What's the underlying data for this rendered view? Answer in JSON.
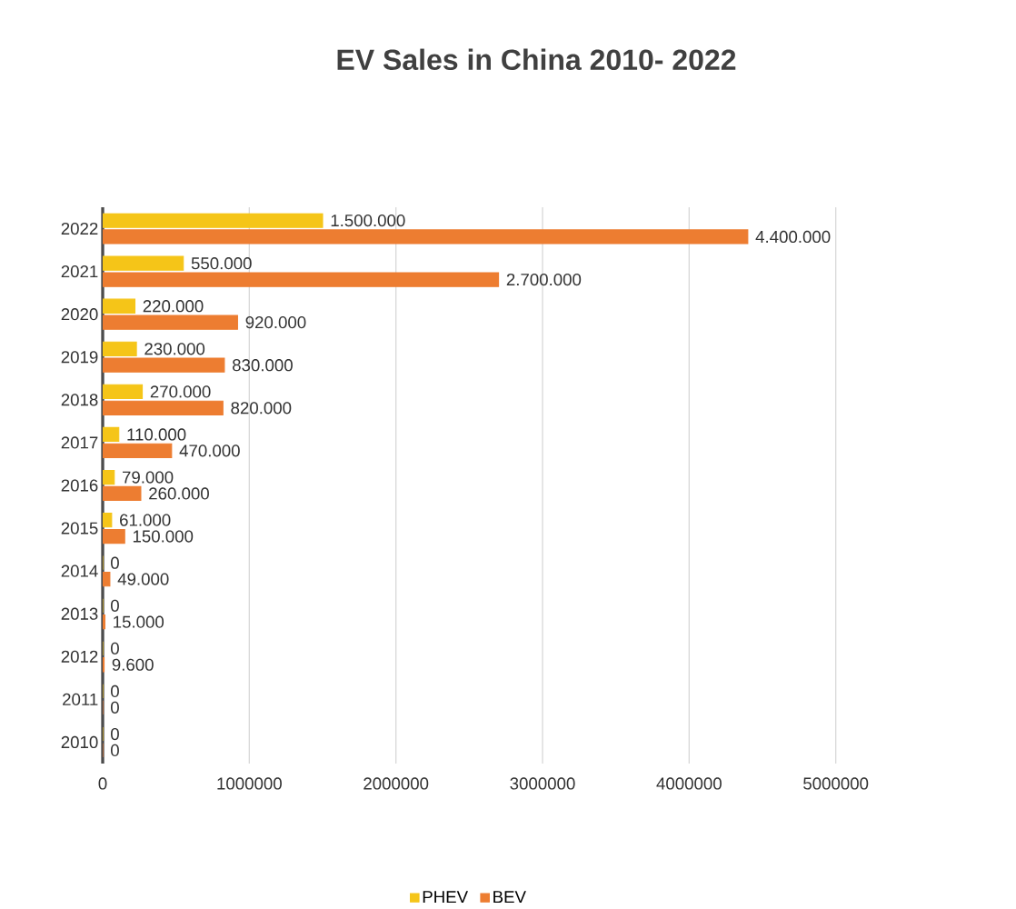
{
  "chart_data": {
    "type": "bar",
    "orientation": "horizontal",
    "title": "EV Sales in China 2010- 2022",
    "categories": [
      "2022",
      "2021",
      "2020",
      "2019",
      "2018",
      "2017",
      "2016",
      "2015",
      "2014",
      "2013",
      "2012",
      "2011",
      "2010"
    ],
    "series": [
      {
        "name": "PHEV",
        "color": "#f5c518",
        "values": [
          1500000,
          550000,
          220000,
          230000,
          270000,
          110000,
          79000,
          61000,
          0,
          0,
          0,
          0,
          0
        ],
        "value_labels": [
          "1.500.000",
          "550.000",
          "220.000",
          "230.000",
          "270.000",
          "110.000",
          "79.000",
          "61.000",
          "0",
          "0",
          "0",
          "0",
          "0"
        ]
      },
      {
        "name": "BEV",
        "color": "#ed7d31",
        "values": [
          4400000,
          2700000,
          920000,
          830000,
          820000,
          470000,
          260000,
          150000,
          49000,
          15000,
          9600,
          0,
          0
        ],
        "value_labels": [
          "4.400.000",
          "2.700.000",
          "920.000",
          "830.000",
          "820.000",
          "470.000",
          "260.000",
          "150.000",
          "49.000",
          "15.000",
          "9.600",
          "0",
          "0"
        ]
      }
    ],
    "xlim": [
      0,
      5000000
    ],
    "xticks": [
      0,
      1000000,
      2000000,
      3000000,
      4000000,
      5000000
    ],
    "grid": "x",
    "legend": "bottom"
  }
}
